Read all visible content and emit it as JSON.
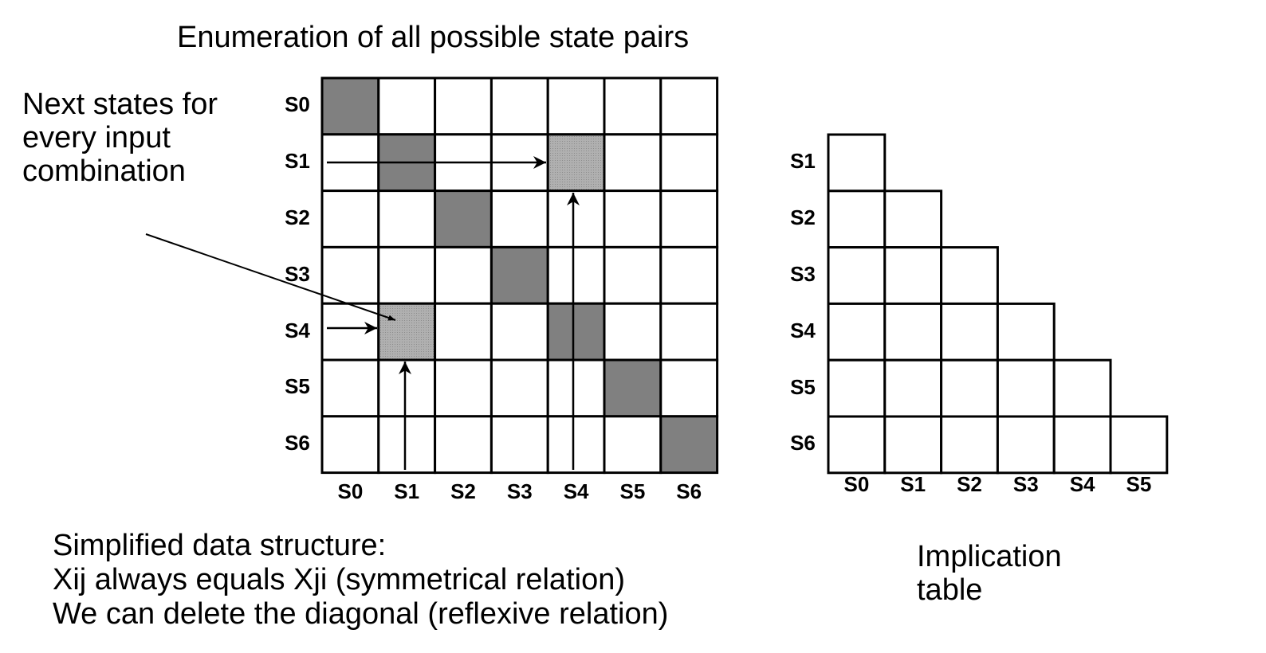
{
  "title": "Enumeration of all possible state pairs",
  "annotation": {
    "lines": [
      "Next states for",
      "every input",
      "combination"
    ]
  },
  "state_matrix": {
    "row_labels": [
      "S0",
      "S1",
      "S2",
      "S3",
      "S4",
      "S5",
      "S6"
    ],
    "col_labels": [
      "S0",
      "S1",
      "S2",
      "S3",
      "S4",
      "S5",
      "S6"
    ],
    "diagonal_color": "#808080",
    "highlight_color": "#a6a6a6",
    "highlighted_cells": [
      {
        "row": "S1",
        "col": "S4"
      },
      {
        "row": "S4",
        "col": "S1"
      }
    ]
  },
  "implication_table": {
    "row_labels": [
      "S1",
      "S2",
      "S3",
      "S4",
      "S5",
      "S6"
    ],
    "col_labels": [
      "S0",
      "S1",
      "S2",
      "S3",
      "S4",
      "S5"
    ],
    "caption_lines": [
      "Implication",
      "table"
    ]
  },
  "simplified": {
    "lines": [
      "Simplified data structure:",
      "Xij always equals Xji  (symmetrical relation)",
      "We can delete the diagonal  (reflexive relation)"
    ]
  }
}
